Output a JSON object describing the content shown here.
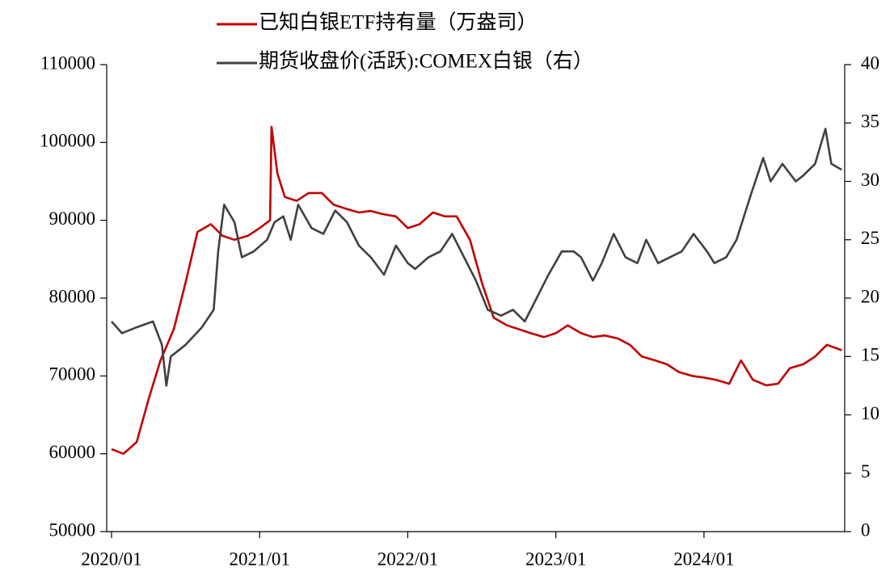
{
  "chart_data": {
    "type": "line",
    "xlim": [
      2020,
      2024.95
    ],
    "xticks": [
      {
        "value": 2020,
        "label": "2020/01"
      },
      {
        "value": 2021,
        "label": "2021/01"
      },
      {
        "value": 2022,
        "label": "2022/01"
      },
      {
        "value": 2023,
        "label": "2023/01"
      },
      {
        "value": 2024,
        "label": "2024/01"
      }
    ],
    "ylim": [
      50000,
      110000
    ],
    "yticks": [
      50000,
      60000,
      70000,
      80000,
      90000,
      100000,
      110000
    ],
    "y2lim": [
      0,
      40
    ],
    "y2ticks": [
      0,
      5,
      10,
      15,
      20,
      25,
      30,
      35,
      40
    ],
    "legend": "top",
    "series": [
      {
        "name": "已知白银ETF持有量（万盎司）",
        "color": "#c00000",
        "x": [
          2020.0,
          2020.08,
          2020.17,
          2020.25,
          2020.33,
          2020.42,
          2020.5,
          2020.58,
          2020.67,
          2020.75,
          2020.83,
          2020.92,
          2021.0,
          2021.07,
          2021.08,
          2021.12,
          2021.17,
          2021.25,
          2021.33,
          2021.42,
          2021.5,
          2021.58,
          2021.67,
          2021.75,
          2021.83,
          2021.92,
          2022.0,
          2022.08,
          2022.17,
          2022.25,
          2022.33,
          2022.42,
          2022.5,
          2022.58,
          2022.67,
          2022.75,
          2022.83,
          2022.92,
          2023.0,
          2023.08,
          2023.17,
          2023.25,
          2023.33,
          2023.42,
          2023.5,
          2023.58,
          2023.67,
          2023.75,
          2023.83,
          2023.92,
          2024.0,
          2024.08,
          2024.17,
          2024.25,
          2024.33,
          2024.42,
          2024.5,
          2024.58,
          2024.67,
          2024.75,
          2024.83,
          2024.93
        ],
        "values": [
          60600,
          60000,
          61500,
          67000,
          72000,
          76000,
          82000,
          88500,
          89500,
          88000,
          87500,
          88000,
          89000,
          90000,
          102000,
          96000,
          93000,
          92500,
          93500,
          93500,
          92000,
          91500,
          91000,
          91200,
          90800,
          90500,
          89000,
          89500,
          91000,
          90500,
          90500,
          87500,
          82000,
          77500,
          76500,
          76000,
          75500,
          75000,
          75500,
          76500,
          75500,
          75000,
          75200,
          74800,
          74000,
          72500,
          72000,
          71500,
          70500,
          70000,
          69800,
          69500,
          69000,
          72000,
          69500,
          68800,
          69000,
          71000,
          71500,
          72500,
          74000,
          73300
        ]
      },
      {
        "name": "期货收盘价(活跃):COMEX白银（右）",
        "color": "#404040",
        "axis": "y2",
        "x": [
          2020.0,
          2020.07,
          2020.17,
          2020.28,
          2020.34,
          2020.37,
          2020.4,
          2020.5,
          2020.61,
          2020.69,
          2020.72,
          2020.76,
          2020.83,
          2020.88,
          2020.96,
          2021.05,
          2021.1,
          2021.16,
          2021.21,
          2021.26,
          2021.35,
          2021.43,
          2021.51,
          2021.59,
          2021.67,
          2021.75,
          2021.84,
          2021.92,
          2022.0,
          2022.05,
          2022.14,
          2022.22,
          2022.3,
          2022.38,
          2022.46,
          2022.54,
          2022.63,
          2022.71,
          2022.79,
          2022.87,
          2022.95,
          2023.04,
          2023.12,
          2023.17,
          2023.25,
          2023.31,
          2023.39,
          2023.47,
          2023.55,
          2023.61,
          2023.69,
          2023.77,
          2023.85,
          2023.93,
          2024.02,
          2024.07,
          2024.15,
          2024.22,
          2024.32,
          2024.4,
          2024.45,
          2024.53,
          2024.62,
          2024.67,
          2024.75,
          2024.82,
          2024.86,
          2024.93
        ],
        "values": [
          18,
          17,
          17.5,
          18,
          16,
          12.5,
          15,
          16,
          17.5,
          19,
          24,
          28,
          26.5,
          23.5,
          24,
          25,
          26.5,
          27,
          25,
          28,
          26,
          25.5,
          27.5,
          26.5,
          24.5,
          23.5,
          22,
          24.5,
          23,
          22.5,
          23.5,
          24,
          25.5,
          23.5,
          21.5,
          19,
          18.5,
          19,
          18,
          20,
          22,
          24,
          24,
          23.5,
          21.5,
          23,
          25.5,
          23.5,
          23,
          25,
          23,
          23.5,
          24,
          25.5,
          24,
          23,
          23.5,
          25,
          29,
          32,
          30,
          31.5,
          30,
          30.5,
          31.5,
          34.5,
          31.5,
          31
        ]
      }
    ]
  }
}
